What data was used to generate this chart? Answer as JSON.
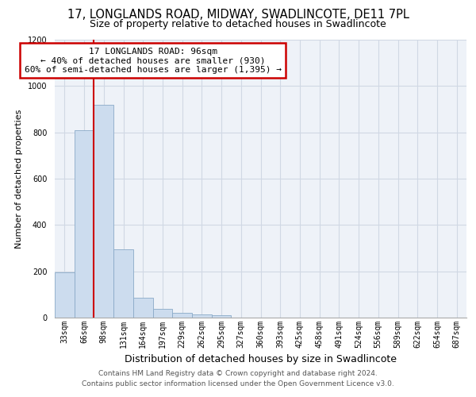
{
  "title1": "17, LONGLANDS ROAD, MIDWAY, SWADLINCOTE, DE11 7PL",
  "title2": "Size of property relative to detached houses in Swadlincote",
  "xlabel": "Distribution of detached houses by size in Swadlincote",
  "ylabel": "Number of detached properties",
  "footer1": "Contains HM Land Registry data © Crown copyright and database right 2024.",
  "footer2": "Contains public sector information licensed under the Open Government Licence v3.0.",
  "bar_labels": [
    "33sqm",
    "66sqm",
    "98sqm",
    "131sqm",
    "164sqm",
    "197sqm",
    "229sqm",
    "262sqm",
    "295sqm",
    "327sqm",
    "360sqm",
    "393sqm",
    "425sqm",
    "458sqm",
    "491sqm",
    "524sqm",
    "556sqm",
    "589sqm",
    "622sqm",
    "654sqm",
    "687sqm"
  ],
  "bar_values": [
    195,
    810,
    920,
    295,
    85,
    38,
    20,
    15,
    12,
    0,
    0,
    0,
    0,
    0,
    0,
    0,
    0,
    0,
    0,
    0,
    0
  ],
  "bar_color": "#ccdcee",
  "bar_edge_color": "#8aaac8",
  "vline_color": "#cc0000",
  "vline_x": 1.5,
  "annotation_line1": "17 LONGLANDS ROAD: 96sqm",
  "annotation_line2": "← 40% of detached houses are smaller (930)",
  "annotation_line3": "60% of semi-detached houses are larger (1,395) →",
  "annotation_box_facecolor": "#ffffff",
  "annotation_box_edgecolor": "#cc0000",
  "ylim_min": 0,
  "ylim_max": 1200,
  "yticks": [
    0,
    200,
    400,
    600,
    800,
    1000,
    1200
  ],
  "grid_color": "#d0d8e4",
  "plot_bg_color": "#eef2f8",
  "title1_fontsize": 10.5,
  "title2_fontsize": 9,
  "ylabel_fontsize": 8,
  "xlabel_fontsize": 9,
  "tick_fontsize": 7,
  "annot_fontsize": 8,
  "footer_fontsize": 6.5
}
